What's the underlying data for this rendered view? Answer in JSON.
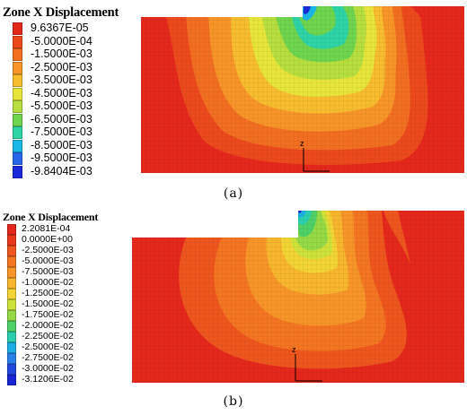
{
  "panel_a": {
    "title": "Zone X Displacement",
    "legend": [
      {
        "label": "9.6367E-05",
        "color": "#e5281c"
      },
      {
        "label": "-5.0000E-04",
        "color": "#ec4a1d"
      },
      {
        "label": "-1.5000E-03",
        "color": "#f26f21"
      },
      {
        "label": "-2.5000E-03",
        "color": "#f79528"
      },
      {
        "label": "-3.5000E-03",
        "color": "#f7bd2f"
      },
      {
        "label": "-4.5000E-03",
        "color": "#e8e53a"
      },
      {
        "label": "-5.5000E-03",
        "color": "#b6de3f"
      },
      {
        "label": "-6.5000E-03",
        "color": "#6fd44e"
      },
      {
        "label": "-7.5000E-03",
        "color": "#2ed3a6"
      },
      {
        "label": "-8.5000E-03",
        "color": "#19b7e6"
      },
      {
        "label": "-9.5000E-03",
        "color": "#2766e6"
      },
      {
        "label": "-9.8404E-03",
        "color": "#1b2ad8"
      }
    ],
    "axis": {
      "z": "z",
      "x": "x"
    },
    "caption": "(a)"
  },
  "panel_b": {
    "title": "Zone X Displacement",
    "legend": [
      {
        "label": "2.2081E-04",
        "color": "#e5281c"
      },
      {
        "label": "0.0000E+00",
        "color": "#e9381c"
      },
      {
        "label": "-2.5000E-03",
        "color": "#ee561e"
      },
      {
        "label": "-5.0000E-03",
        "color": "#f47522"
      },
      {
        "label": "-7.5000E-03",
        "color": "#f79528"
      },
      {
        "label": "-1.0000E-02",
        "color": "#f7b62d"
      },
      {
        "label": "-1.2500E-02",
        "color": "#f2d534"
      },
      {
        "label": "-1.5000E-02",
        "color": "#cfe23b"
      },
      {
        "label": "-1.7500E-02",
        "color": "#95d946"
      },
      {
        "label": "-2.0000E-02",
        "color": "#4ed167"
      },
      {
        "label": "-2.2500E-02",
        "color": "#2bcfb0"
      },
      {
        "label": "-2.5000E-02",
        "color": "#1eaee6"
      },
      {
        "label": "-2.7500E-02",
        "color": "#2a7fe8"
      },
      {
        "label": "-3.0000E-02",
        "color": "#2248e0"
      },
      {
        "label": "-3.1206E-02",
        "color": "#1a25d3"
      }
    ],
    "axis": {
      "z": "z",
      "x": "x"
    },
    "caption": "(b)"
  }
}
